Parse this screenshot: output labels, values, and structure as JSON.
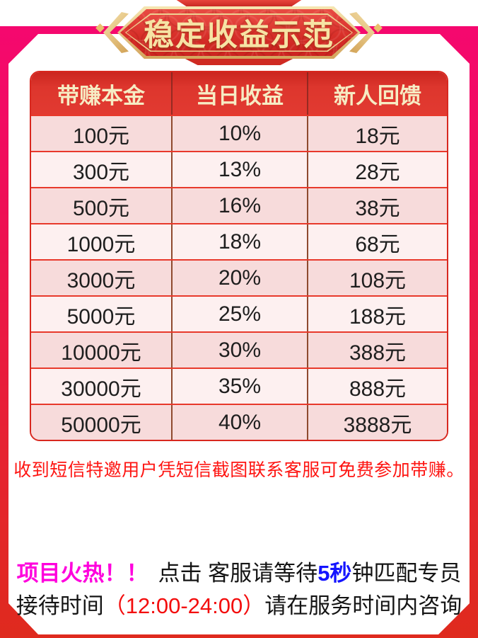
{
  "banner": {
    "title": "稳定收益示范"
  },
  "table": {
    "headers": [
      "带赚本金",
      "当日收益",
      "新人回馈"
    ],
    "rows": [
      [
        "100元",
        "10%",
        "18元"
      ],
      [
        "300元",
        "13%",
        "28元"
      ],
      [
        "500元",
        "16%",
        "38元"
      ],
      [
        "1000元",
        "18%",
        "68元"
      ],
      [
        "3000元",
        "20%",
        "108元"
      ],
      [
        "5000元",
        "25%",
        "188元"
      ],
      [
        "10000元",
        "30%",
        "388元"
      ],
      [
        "30000元",
        "35%",
        "888元"
      ],
      [
        "50000元",
        "40%",
        "3888元"
      ]
    ]
  },
  "notice": "收到短信特邀用户凭短信截图联系客服可免费参加带赚。",
  "footer": {
    "line1": {
      "hot": "项目火热！！",
      "click": "点击 客服请等待",
      "seconds": "5秒",
      "rest": "钟匹配专员"
    },
    "line2": {
      "pre": "接待时间",
      "time": "（12:00-24:00）",
      "post": "请在服务时间内咨询"
    }
  },
  "colors": {
    "frame_top_magenta": "#f5086f",
    "frame_bottom_red": "#df2a1e",
    "banner_red": "#d8302a",
    "banner_gold": "#e9c87e",
    "header_red": "#dd362d",
    "header_text_gold": "#f6ecc4",
    "row_pink_dark": "#f7dbdb",
    "row_pink_light": "#fdf0f0",
    "row_line_red": "#e8392b",
    "col_line_brown": "#8e4a2e",
    "notice_red": "#fe1512",
    "hot_magenta": "#ff00dd",
    "seconds_blue": "#1414ff",
    "time_red": "#f30d0d"
  }
}
